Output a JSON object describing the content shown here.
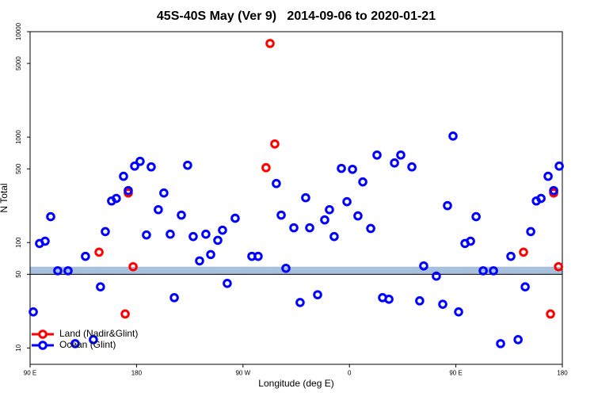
{
  "chart_data": {
    "type": "scatter",
    "title": "45S-40S May (Ver 9)   2014-09-06 to 2020-01-21",
    "x_label": "Longitude (deg E)",
    "y_label": "N Total",
    "log_y": true,
    "xlim": [
      90,
      540
    ],
    "ylim": [
      7,
      10000
    ],
    "xticks": [
      {
        "value": 90,
        "label": "90 E"
      },
      {
        "value": 180,
        "label": "180"
      },
      {
        "value": 270,
        "label": "90 W"
      },
      {
        "value": 360,
        "label": "0"
      },
      {
        "value": 450,
        "label": "90 E"
      },
      {
        "value": 540,
        "label": "180"
      }
    ],
    "yticks": [
      10,
      50,
      100,
      500,
      1000,
      5000,
      10000
    ],
    "reference_band": {
      "range": [
        50,
        59
      ],
      "color": "#a8bfdd"
    },
    "reference_line": 50,
    "legend": "bottom-left",
    "series": [
      {
        "name": "Land (Nadir&Glint)",
        "color": "#ff0000",
        "x": [
          148.3,
          170.4,
          173.0,
          177.1,
          289.5,
          292.9,
          296.9,
          507.2,
          530.0,
          532.7,
          536.8
        ],
        "values": [
          81,
          21,
          295,
          59,
          513,
          7730,
          861,
          81,
          21,
          295,
          59
        ]
      },
      {
        "name": "Ocean (Glint)",
        "color": "#0000ff",
        "x": [
          92.7,
          98.0,
          102.7,
          107.4,
          113.4,
          122.1,
          128.1,
          136.8,
          143.5,
          149.5,
          153.6,
          158.9,
          162.9,
          169.0,
          173.0,
          178.4,
          183.0,
          188.4,
          192.4,
          198.4,
          203.1,
          208.5,
          211.9,
          217.9,
          223.2,
          227.9,
          233.3,
          238.6,
          242.7,
          248.7,
          252.7,
          256.7,
          263.4,
          277.5,
          282.8,
          298.2,
          302.3,
          306.3,
          313.0,
          318.3,
          323.0,
          326.4,
          333.1,
          339.1,
          343.1,
          347.1,
          353.2,
          357.9,
          362.6,
          367.2,
          371.3,
          378.0,
          383.3,
          388.0,
          393.4,
          398.1,
          403.4,
          412.8,
          419.4,
          422.8,
          433.5,
          438.9,
          442.9,
          447.6,
          452.3,
          457.7,
          462.4,
          467.1,
          473.1,
          481.8,
          487.8,
          496.5,
          502.6,
          508.6,
          513.3,
          518.0,
          522.0,
          528.0,
          532.7,
          537.4
        ],
        "values": [
          22,
          98,
          103,
          176,
          54,
          54,
          11,
          74,
          12,
          38,
          127,
          248,
          262,
          425,
          311,
          531,
          589,
          118,
          522,
          205,
          295,
          120,
          30,
          182,
          541,
          114,
          67,
          120,
          77,
          105,
          131,
          41,
          170,
          74,
          74,
          363,
          182,
          57,
          138,
          27,
          266,
          138,
          32,
          164,
          205,
          114,
          505,
          244,
          495,
          179,
          376,
          136,
          676,
          30,
          29,
          569,
          676,
          522,
          28,
          60,
          48,
          26,
          224,
          1023,
          22,
          98,
          103,
          176,
          54,
          54,
          11,
          74,
          12,
          38,
          127,
          248,
          262,
          425,
          311,
          531
        ]
      }
    ]
  }
}
